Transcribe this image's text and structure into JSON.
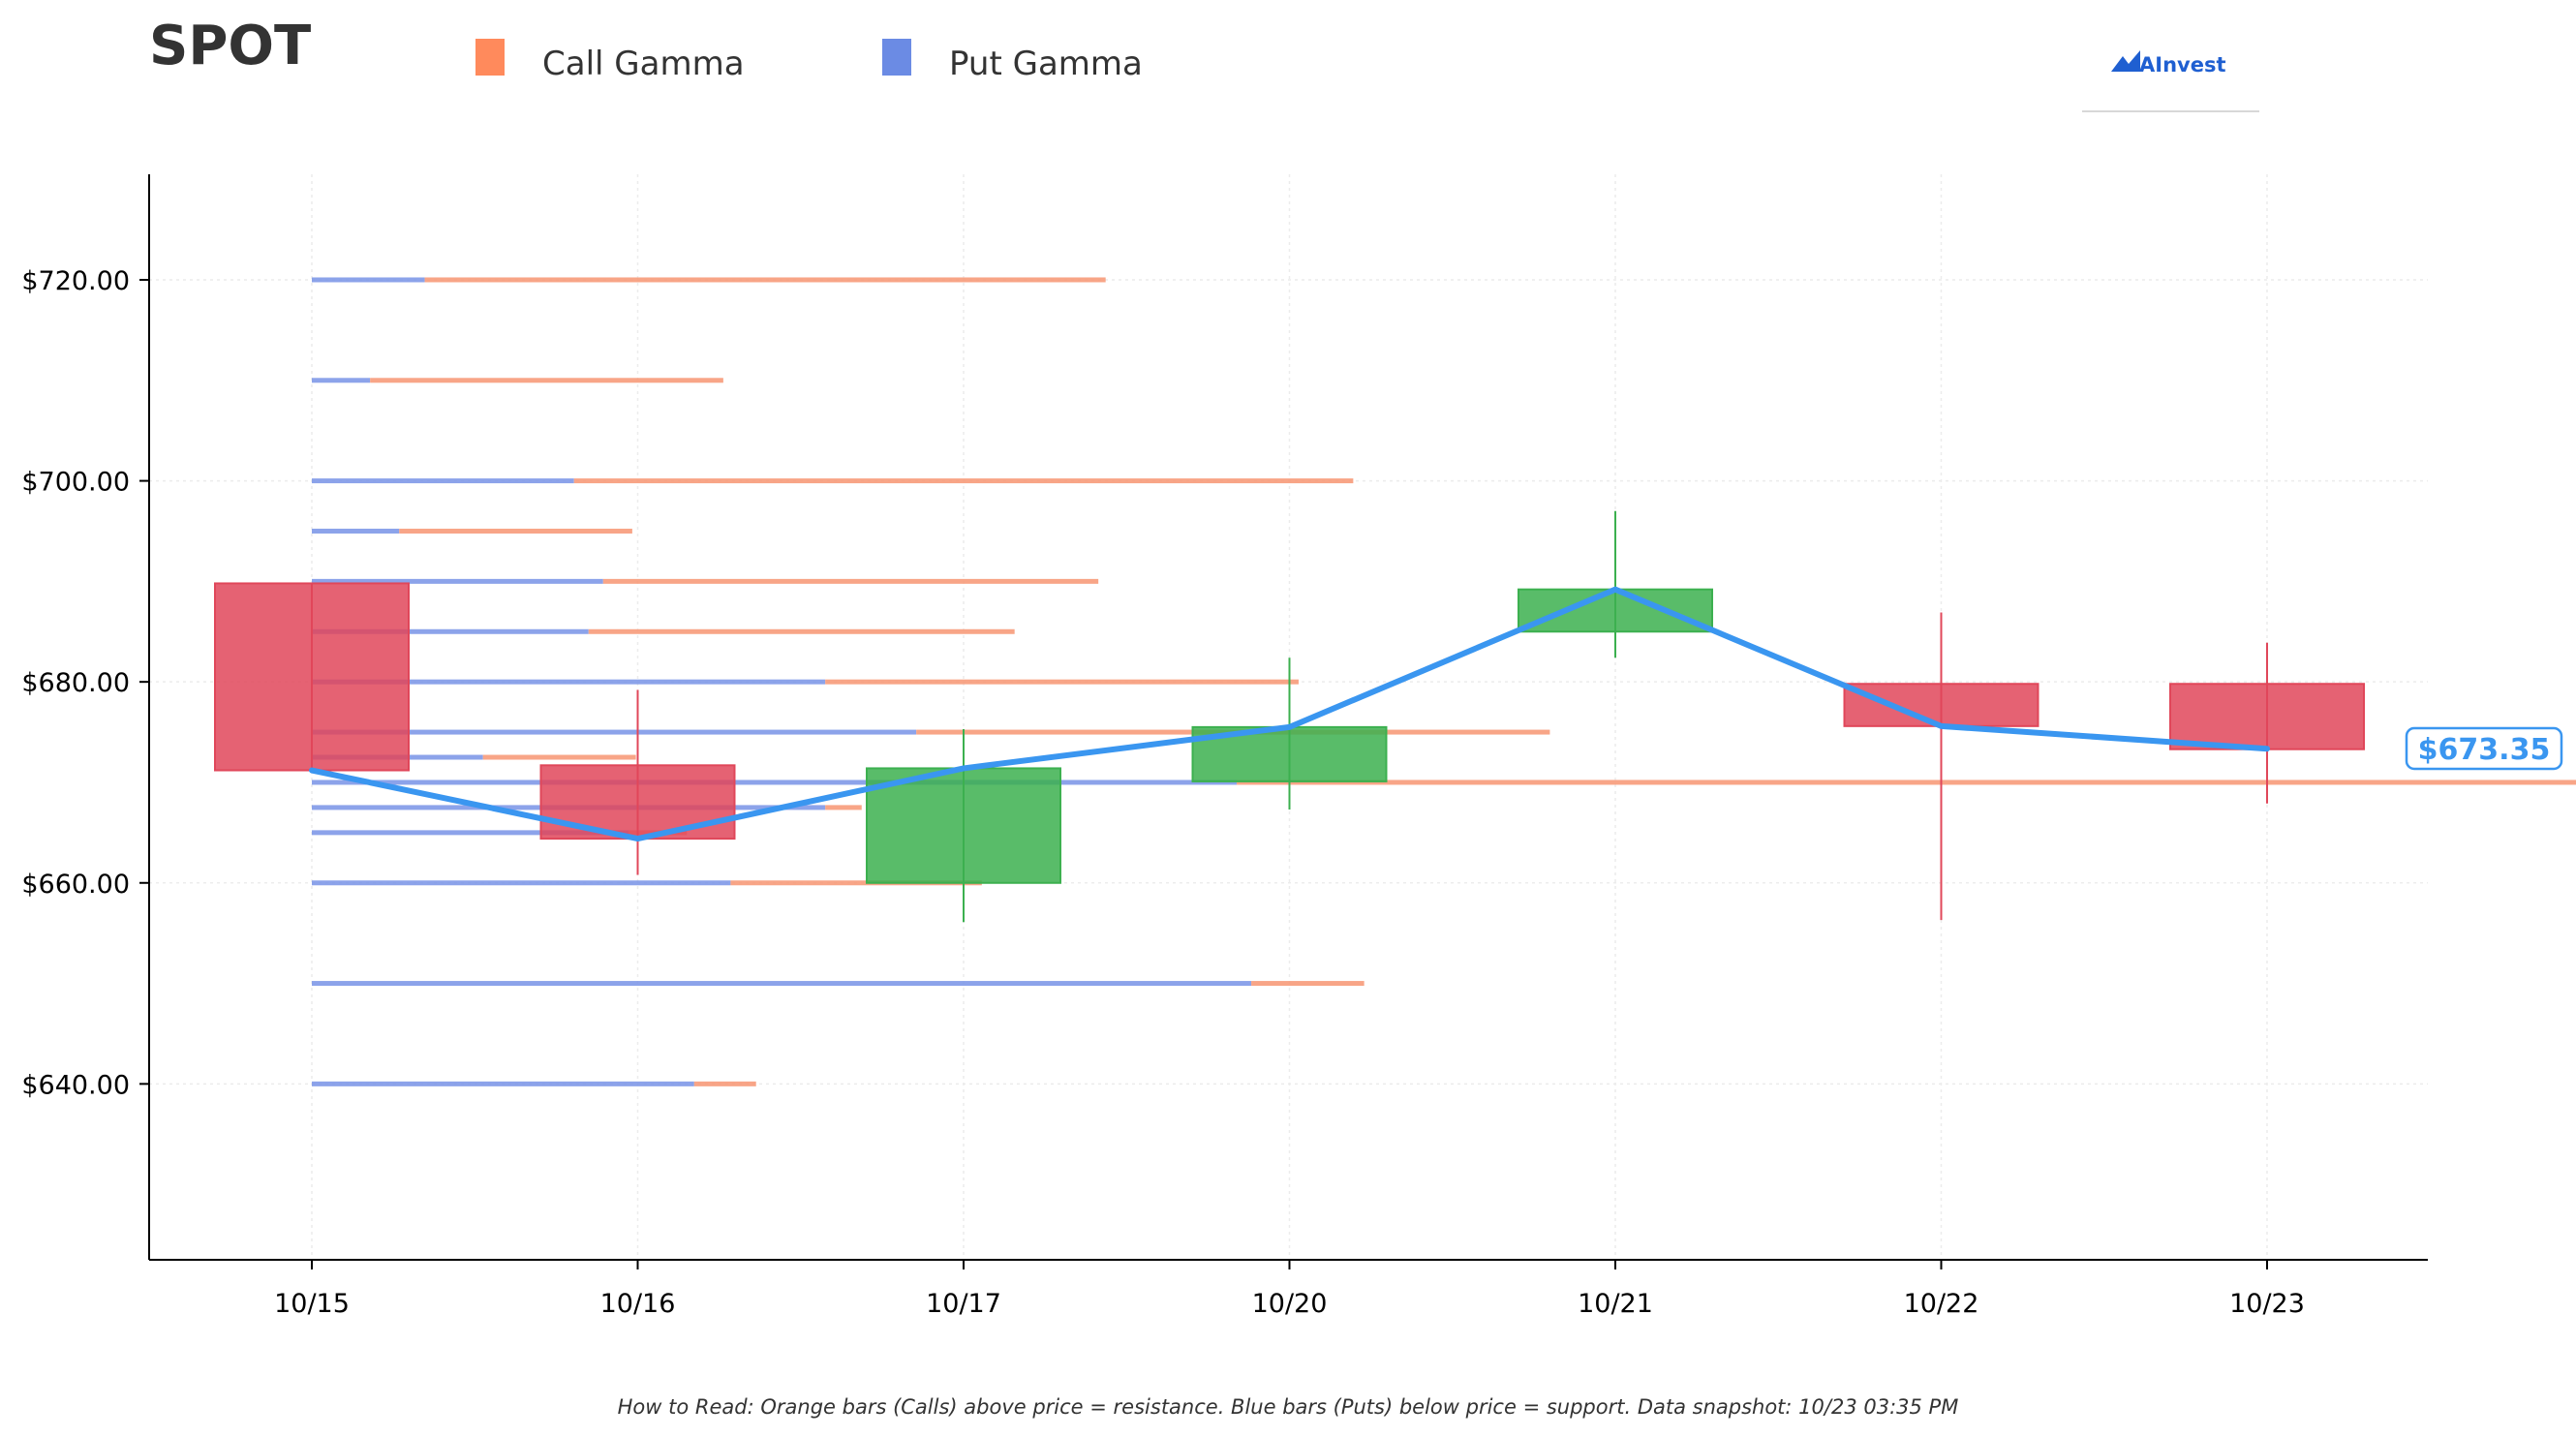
{
  "header": {
    "ticker": "SPOT",
    "brand": "AInvest"
  },
  "legend": {
    "items": [
      {
        "label": "Call Gamma",
        "color": "#ff8a5c"
      },
      {
        "label": "Put Gamma",
        "color": "#6b8be4"
      }
    ]
  },
  "footer": {
    "note": "How to Read: Orange bars (Calls) above price = resistance. Blue bars (Puts) below price = support. Data snapshot: 10/23 03:35 PM"
  },
  "colors": {
    "up": "#3cb04f",
    "down": "#e0475a",
    "price_line": "#3a96f0",
    "call": "#f79b7a",
    "put": "#7f99e8",
    "axis": "#000000",
    "grid": "#ececec"
  },
  "chart_data": {
    "type": "candlestick",
    "categories": [
      "10/15",
      "10/16",
      "10/17",
      "10/20",
      "10/21",
      "10/22",
      "10/23"
    ],
    "ohlc": [
      {
        "date": "10/15",
        "open": 689.8,
        "high": 689.8,
        "low": 671.2,
        "close": 671.2
      },
      {
        "date": "10/16",
        "open": 671.7,
        "high": 679.2,
        "low": 660.8,
        "close": 664.4
      },
      {
        "date": "10/17",
        "open": 660.0,
        "high": 675.3,
        "low": 656.1,
        "close": 671.4
      },
      {
        "date": "10/20",
        "open": 670.1,
        "high": 682.4,
        "low": 667.3,
        "close": 675.5
      },
      {
        "date": "10/21",
        "open": 685.0,
        "high": 697.0,
        "low": 682.4,
        "close": 689.2
      },
      {
        "date": "10/22",
        "open": 679.8,
        "high": 686.9,
        "low": 656.3,
        "close": 675.6
      },
      {
        "date": "10/23",
        "open": 679.8,
        "high": 683.9,
        "low": 667.9,
        "close": 673.3
      }
    ],
    "price_line": [
      671.2,
      664.4,
      671.4,
      675.5,
      689.2,
      675.6,
      673.35
    ],
    "last_price_label": "$673.35",
    "gamma_bars": [
      {
        "strike": 720.0,
        "put": 0.31,
        "call": 1.87
      },
      {
        "strike": 710.0,
        "put": 0.16,
        "call": 0.97
      },
      {
        "strike": 700.0,
        "put": 0.72,
        "call": 2.14
      },
      {
        "strike": 695.0,
        "put": 0.24,
        "call": 0.64
      },
      {
        "strike": 690.0,
        "put": 0.8,
        "call": 1.36
      },
      {
        "strike": 685.0,
        "put": 0.76,
        "call": 1.17
      },
      {
        "strike": 680.0,
        "put": 1.41,
        "call": 1.3
      },
      {
        "strike": 675.0,
        "put": 1.66,
        "call": 1.74
      },
      {
        "strike": 672.5,
        "put": 0.47,
        "call": 0.42
      },
      {
        "strike": 670.0,
        "put": 2.54,
        "call": 4.33
      },
      {
        "strike": 667.5,
        "put": 1.41,
        "call": 0.1
      },
      {
        "strike": 665.0,
        "put": 0.87,
        "call": 0.16
      },
      {
        "strike": 660.0,
        "put": 1.15,
        "call": 0.69
      },
      {
        "strike": 650.0,
        "put": 2.58,
        "call": 0.31
      },
      {
        "strike": 640.0,
        "put": 1.05,
        "call": 0.17
      }
    ],
    "yticks": [
      640,
      660,
      680,
      700,
      720
    ],
    "ytick_labels": [
      "$640.00",
      "$660.00",
      "$680.00",
      "$700.00",
      "$720.00"
    ],
    "ylim": [
      622.5,
      730.5
    ],
    "grid": true,
    "legend_position": "top"
  }
}
